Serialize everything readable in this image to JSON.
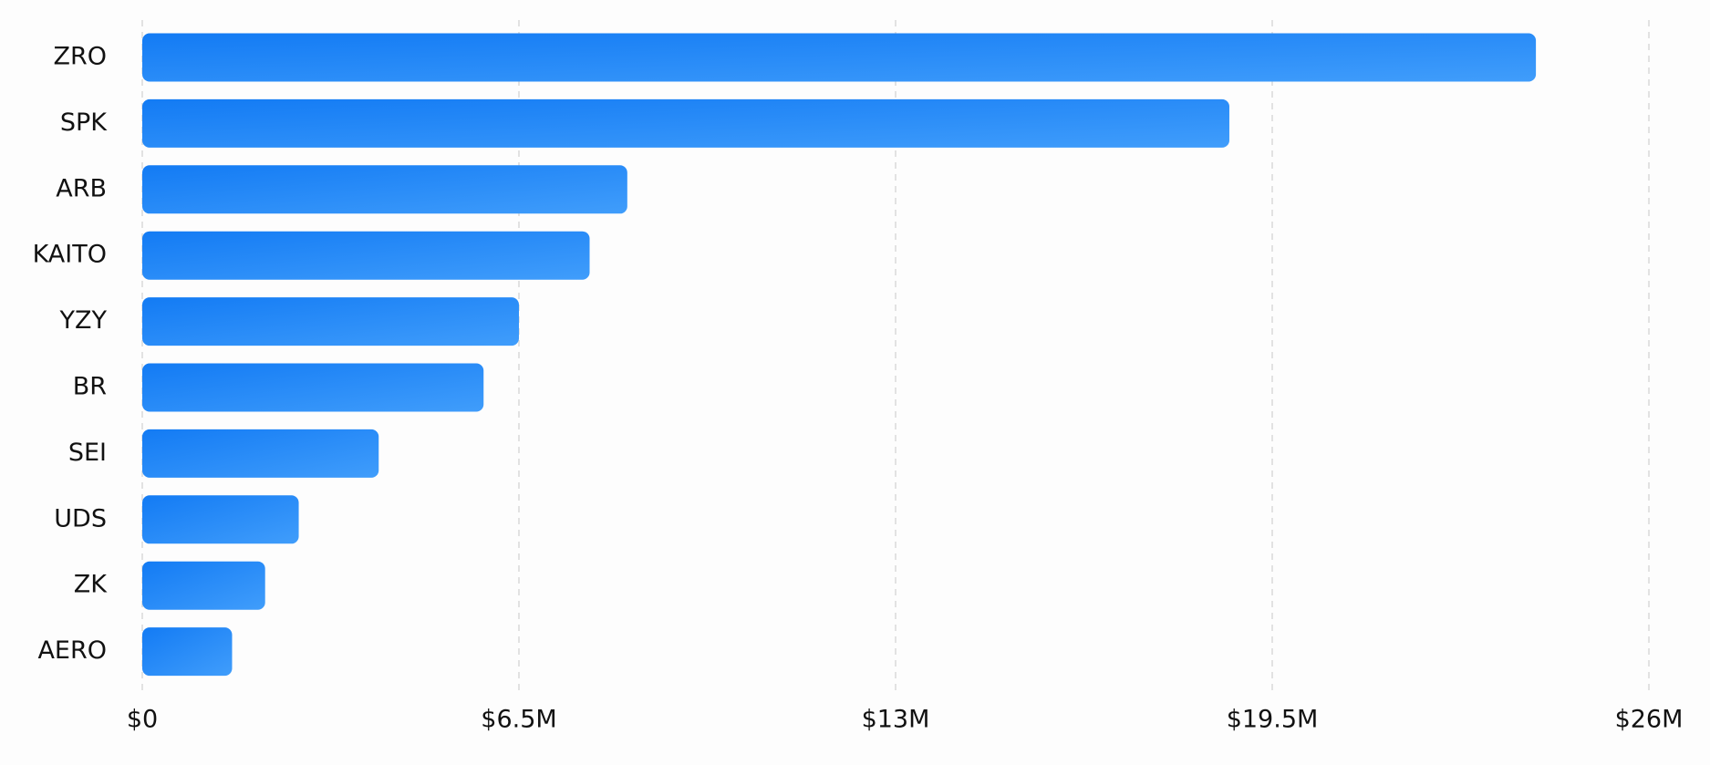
{
  "chart_data": {
    "type": "hbar",
    "categories": [
      "ZRO",
      "SPK",
      "ARB",
      "KAITO",
      "YZY",
      "BR",
      "SEI",
      "UDS",
      "ZK",
      "AERO"
    ],
    "values": [
      24050000,
      18760000,
      8370000,
      7720000,
      6500000,
      5890000,
      4080000,
      2700000,
      2120000,
      1550000
    ],
    "color": [
      "#137bf4",
      "#409dfb"
    ],
    "xlim": [
      0,
      26000000
    ],
    "xticks": [
      {
        "value": 0,
        "label": "$0"
      },
      {
        "value": 6500000,
        "label": "$6.5M"
      },
      {
        "value": 13000000,
        "label": "$13M"
      },
      {
        "value": 19500000,
        "label": "$19.5M"
      },
      {
        "value": 26000000,
        "label": "$26M"
      }
    ],
    "grid": true
  }
}
